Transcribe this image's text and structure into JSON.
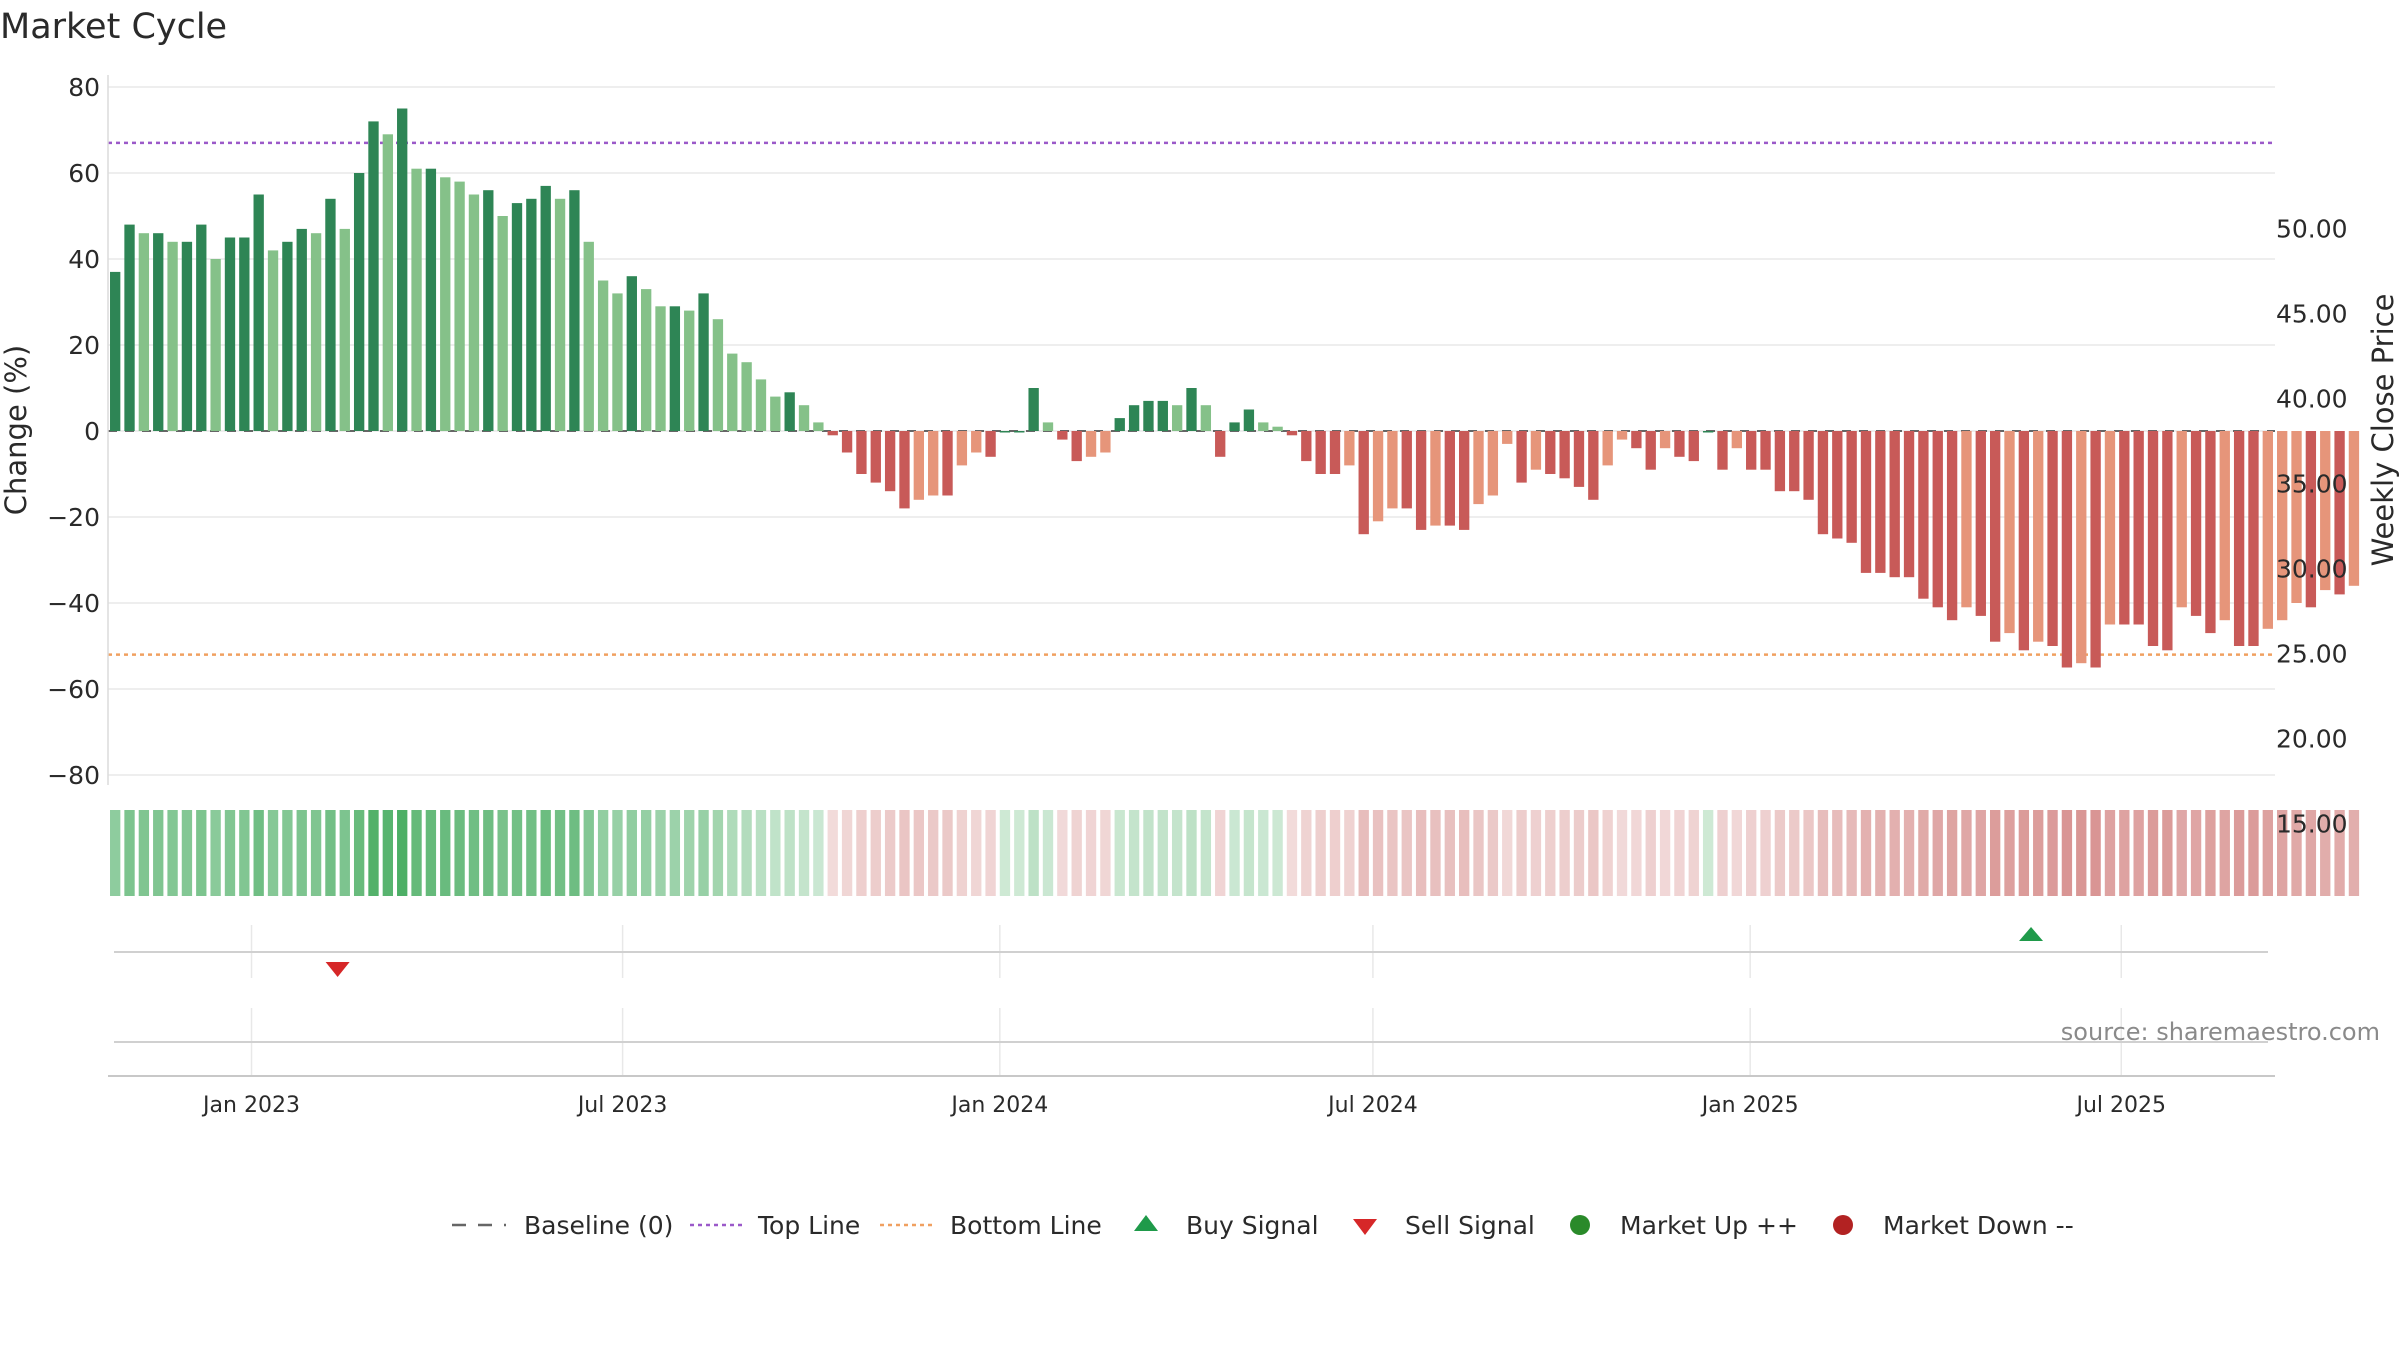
{
  "chart_data": {
    "type": "bar",
    "title": "Market Cycle",
    "ylabel": "Change (%)",
    "y2label": "Weekly Close Price",
    "ylim": [
      -80,
      80
    ],
    "y2lim": [
      10.0,
      52.0
    ],
    "yticks": [
      80,
      60,
      40,
      20,
      0,
      -20,
      -40,
      -60,
      -80
    ],
    "yticks_labels": [
      "80",
      "60",
      "40",
      "20",
      "0",
      "−20",
      "−40",
      "−60",
      "−80"
    ],
    "y2ticks": [
      50,
      45,
      40,
      35,
      30,
      25,
      20,
      15
    ],
    "y2ticks_labels": [
      "50.00",
      "45.00",
      "40.00",
      "35.00",
      "30.00",
      "25.00",
      "20.00",
      "15.00"
    ],
    "x_range": [
      "2022-10-23",
      "2025-09-14"
    ],
    "first_week": "2022-10-23",
    "x_ticks": [
      {
        "date": "2023-01-01",
        "label": "Jan 2023"
      },
      {
        "date": "2023-07-01",
        "label": "Jul 2023"
      },
      {
        "date": "2024-01-01",
        "label": "Jan 2024"
      },
      {
        "date": "2024-07-01",
        "label": "Jul 2024"
      },
      {
        "date": "2025-01-01",
        "label": "Jan 2025"
      },
      {
        "date": "2025-07-01",
        "label": "Jul 2025"
      }
    ],
    "top_line": 67,
    "bottom_line": -52,
    "baseline": 0,
    "weekly_change": [
      37,
      48,
      46,
      46,
      44,
      44,
      48,
      40,
      45,
      45,
      55,
      42,
      44,
      47,
      46,
      54,
      47,
      60,
      72,
      69,
      75,
      61,
      61,
      59,
      58,
      55,
      56,
      50,
      53,
      54,
      57,
      54,
      56,
      44,
      35,
      32,
      36,
      33,
      29,
      29,
      28,
      32,
      26,
      18,
      16,
      12,
      8,
      9,
      6,
      2,
      -1,
      -5,
      -10,
      -12,
      -14,
      -18,
      -16,
      -15,
      -15,
      -8,
      -5,
      -6,
      0,
      0,
      10,
      2,
      -2,
      -7,
      -6,
      -5,
      3,
      6,
      7,
      7,
      6,
      10,
      6,
      -6,
      2,
      5,
      2,
      1,
      -1,
      -7,
      -10,
      -10,
      -8,
      -24,
      -21,
      -18,
      -18,
      -23,
      -22,
      -22,
      -23,
      -17,
      -15,
      -3,
      -12,
      -9,
      -10,
      -11,
      -13,
      -16,
      -8,
      -2,
      -4,
      -9,
      -4,
      -6,
      -7,
      0,
      -9,
      -4,
      -9,
      -9,
      -14,
      -14,
      -16,
      -24,
      -25,
      -26,
      -33,
      -33,
      -34,
      -34,
      -39,
      -41,
      -44,
      -41,
      -43,
      -49,
      -47,
      -51,
      -49,
      -50,
      -55,
      -54,
      -55,
      -45,
      -45,
      -45,
      -50,
      -51,
      -41,
      -43,
      -47,
      -44,
      -50,
      -50,
      -46,
      -44,
      -40,
      -41,
      -37,
      -38,
      -36
    ],
    "signals": [
      {
        "type": "sell",
        "date": "2023-02-12"
      },
      {
        "type": "buy",
        "date": "2025-05-18"
      }
    ],
    "colors": {
      "up_dark": "#2e8555",
      "up_light": "#85c189",
      "down_dark": "#c85a58",
      "down_light": "#e6957a",
      "top_line": "#9b59c9",
      "bottom_line": "#f0a060",
      "baseline": "#666666",
      "buy": "#1f9a4a",
      "sell": "#d62728",
      "market_up": "#2a8a2a",
      "market_down": "#b22222"
    },
    "legend": [
      {
        "label": "Baseline (0)",
        "marker": "dash"
      },
      {
        "label": "Top Line",
        "marker": "dotted-purple"
      },
      {
        "label": "Bottom Line",
        "marker": "dotted-orange"
      },
      {
        "label": "Buy Signal",
        "marker": "triangle-up"
      },
      {
        "label": "Sell Signal",
        "marker": "triangle-down"
      },
      {
        "label": "Market Up ++",
        "marker": "circle-green"
      },
      {
        "label": "Market Down --",
        "marker": "circle-red"
      }
    ],
    "legend_position": "bottom-center",
    "grid": true
  },
  "source": "source: sharemaestro.com"
}
